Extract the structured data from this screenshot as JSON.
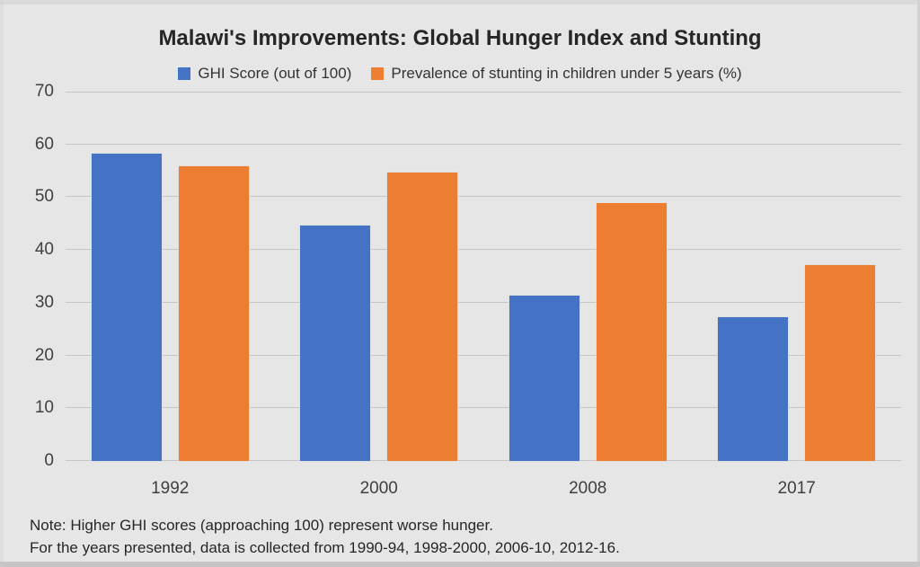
{
  "title": "Malawi's Improvements: Global Hunger Index and Stunting",
  "notes": [
    "Note: Higher GHI scores (approaching 100) represent worse hunger.",
    "For the years presented, data is collected from 1990-94, 1998-2000, 2006-10, 2012-16."
  ],
  "chart_data": {
    "type": "bar",
    "title": "Malawi's Improvements: Global Hunger Index and Stunting",
    "categories": [
      "1992",
      "2000",
      "2008",
      "2017"
    ],
    "series": [
      {
        "name": "GHI Score (out of 100)",
        "slug": "ghi-score",
        "color": "#4472C4",
        "values": [
          58.2,
          44.7,
          31.4,
          27.2
        ]
      },
      {
        "name": "Prevalence of stunting in children under 5 years (%)",
        "slug": "stunting-prevalence",
        "color": "#ED7D31",
        "values": [
          55.8,
          54.6,
          48.8,
          37.1
        ]
      }
    ],
    "xlabel": "",
    "ylabel": "",
    "ylim": [
      0,
      70
    ],
    "ytick_interval": 10,
    "yticks": [
      0,
      10,
      20,
      30,
      40,
      50,
      60,
      70
    ],
    "grid": true,
    "legend_position": "top",
    "colors": {
      "background": "#E7E6E6",
      "gridline": "#c6c4c4",
      "axis_text": "#3f3f3f",
      "title_text": "#262626"
    }
  }
}
